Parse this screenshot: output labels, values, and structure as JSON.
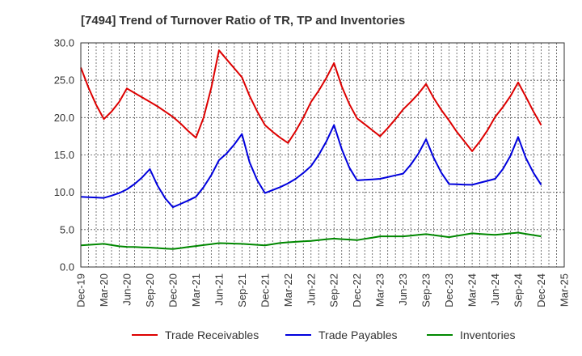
{
  "chart_data": {
    "type": "line",
    "title": "[7494]  Trend of Turnover Ratio of TR, TP and Inventories",
    "xlabel": "",
    "ylabel": "",
    "ylim": [
      0,
      30
    ],
    "y_ticks": [
      "0.0",
      "5.0",
      "10.0",
      "15.0",
      "20.0",
      "25.0",
      "30.0"
    ],
    "x_ticks": [
      "Dec-19",
      "Mar-20",
      "Jun-20",
      "Sep-20",
      "Dec-20",
      "Mar-21",
      "Jun-21",
      "Sep-21",
      "Dec-21",
      "Mar-22",
      "Jun-22",
      "Sep-22",
      "Dec-22",
      "Mar-23",
      "Jun-23",
      "Sep-23",
      "Dec-23",
      "Mar-24",
      "Jun-24",
      "Sep-24",
      "Dec-24",
      "Mar-25"
    ],
    "x": [
      "Dec-19",
      "Jan-20",
      "Feb-20",
      "Mar-20",
      "Apr-20",
      "May-20",
      "Jun-20",
      "Jul-20",
      "Aug-20",
      "Sep-20",
      "Oct-20",
      "Nov-20",
      "Dec-20",
      "Jan-21",
      "Feb-21",
      "Mar-21",
      "Apr-21",
      "May-21",
      "Jun-21",
      "Jul-21",
      "Aug-21",
      "Sep-21",
      "Oct-21",
      "Nov-21",
      "Dec-21",
      "Jan-22",
      "Feb-22",
      "Mar-22",
      "Apr-22",
      "May-22",
      "Jun-22",
      "Jul-22",
      "Aug-22",
      "Sep-22",
      "Oct-22",
      "Nov-22",
      "Dec-22",
      "Jan-23",
      "Feb-23",
      "Mar-23",
      "Apr-23",
      "May-23",
      "Jun-23",
      "Jul-23",
      "Aug-23",
      "Sep-23",
      "Oct-23",
      "Nov-23",
      "Dec-23",
      "Jan-24",
      "Feb-24",
      "Mar-24",
      "Apr-24",
      "May-24",
      "Jun-24",
      "Jul-24",
      "Aug-24",
      "Sep-24",
      "Oct-24",
      "Nov-24",
      "Dec-24"
    ],
    "grid": true,
    "legend_position": "bottom",
    "series": [
      {
        "name": "Trade Receivables",
        "color": "#dd0000",
        "values": [
          26.7,
          24.0,
          21.7,
          19.8,
          20.8,
          22.1,
          23.9,
          23.3,
          22.7,
          22.1,
          21.5,
          20.8,
          20.1,
          19.2,
          18.2,
          17.3,
          20.0,
          24.0,
          29.0,
          27.8,
          26.6,
          25.4,
          22.9,
          20.8,
          19.0,
          18.1,
          17.3,
          16.6,
          18.2,
          20.0,
          22.1,
          23.6,
          25.3,
          27.3,
          24.2,
          21.8,
          19.9,
          19.1,
          18.3,
          17.5,
          18.6,
          19.8,
          21.1,
          22.1,
          23.2,
          24.5,
          22.6,
          21.0,
          19.6,
          18.1,
          16.8,
          15.5,
          16.8,
          18.3,
          20.1,
          21.4,
          22.9,
          24.7,
          22.8,
          20.8,
          19.0
        ]
      },
      {
        "name": "Trade Payables",
        "color": "#0000dd",
        "values": [
          9.4,
          9.35,
          9.3,
          9.25,
          9.55,
          9.9,
          10.4,
          11.1,
          12.0,
          13.1,
          10.9,
          9.2,
          8.0,
          8.45,
          8.9,
          9.4,
          10.7,
          12.3,
          14.3,
          15.2,
          16.4,
          17.8,
          14.0,
          11.6,
          9.9,
          10.3,
          10.7,
          11.2,
          11.8,
          12.6,
          13.5,
          15.0,
          16.8,
          19.0,
          15.8,
          13.3,
          11.6,
          11.67,
          11.73,
          11.8,
          12.03,
          12.27,
          12.5,
          13.7,
          15.2,
          17.1,
          14.6,
          12.6,
          11.1,
          11.07,
          11.03,
          11.0,
          11.27,
          11.53,
          11.8,
          13.1,
          14.9,
          17.4,
          14.6,
          12.6,
          11.0
        ]
      },
      {
        "name": "Inventories",
        "color": "#008800",
        "values": [
          2.9,
          2.97,
          3.03,
          3.1,
          2.93,
          2.77,
          2.7,
          2.67,
          2.63,
          2.6,
          2.53,
          2.47,
          2.4,
          2.53,
          2.67,
          2.8,
          2.93,
          3.07,
          3.2,
          3.17,
          3.13,
          3.1,
          3.03,
          2.97,
          2.9,
          3.07,
          3.23,
          3.3,
          3.37,
          3.43,
          3.5,
          3.6,
          3.7,
          3.8,
          3.73,
          3.67,
          3.6,
          3.77,
          3.93,
          4.1,
          4.1,
          4.1,
          4.1,
          4.2,
          4.3,
          4.4,
          4.27,
          4.13,
          4.0,
          4.17,
          4.33,
          4.5,
          4.43,
          4.37,
          4.3,
          4.4,
          4.5,
          4.6,
          4.43,
          4.27,
          4.1
        ]
      }
    ]
  }
}
